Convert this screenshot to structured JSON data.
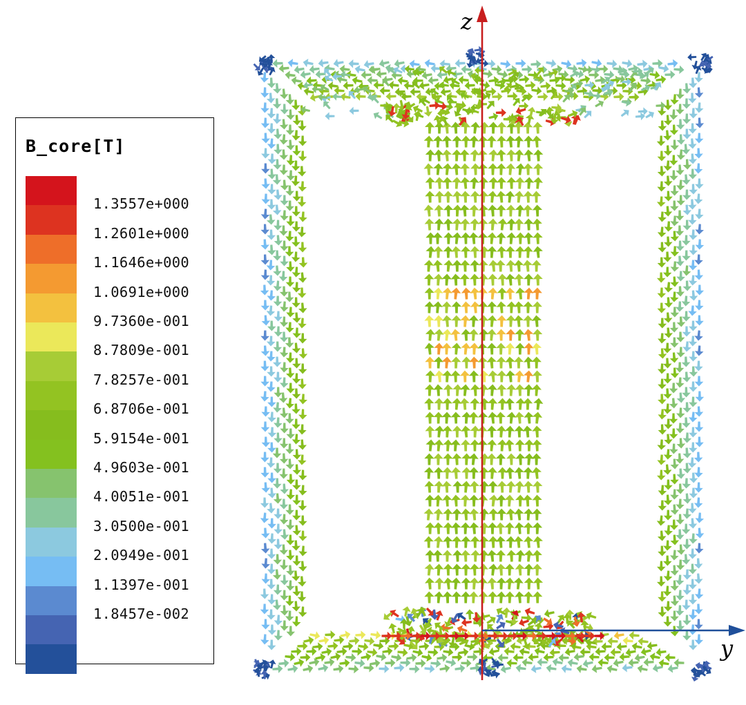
{
  "legend": {
    "title": "B_core[T]",
    "colors": [
      "#d4141c",
      "#dd3320",
      "#ee6e29",
      "#f49a31",
      "#f3c13f",
      "#ebe85a",
      "#a7cc36",
      "#93c322",
      "#86bd1e",
      "#84c11f",
      "#86c36e",
      "#88c79d",
      "#8cc9df",
      "#76bdf3",
      "#5b8ad0",
      "#4564b2",
      "#23509a"
    ],
    "ticks": [
      "1.3557e+000",
      "1.2601e+000",
      "1.1646e+000",
      "1.0691e+000",
      "9.7360e-001",
      "8.7809e-001",
      "7.8257e-001",
      "6.8706e-001",
      "5.9154e-001",
      "4.9603e-001",
      "4.0051e-001",
      "3.0500e-001",
      "2.0949e-001",
      "1.1397e-001",
      "1.8457e-002"
    ]
  },
  "axes": {
    "z_label": "z",
    "y_label": "y",
    "z_color": "#c81e1e",
    "y_color": "#1f4f9a"
  }
}
